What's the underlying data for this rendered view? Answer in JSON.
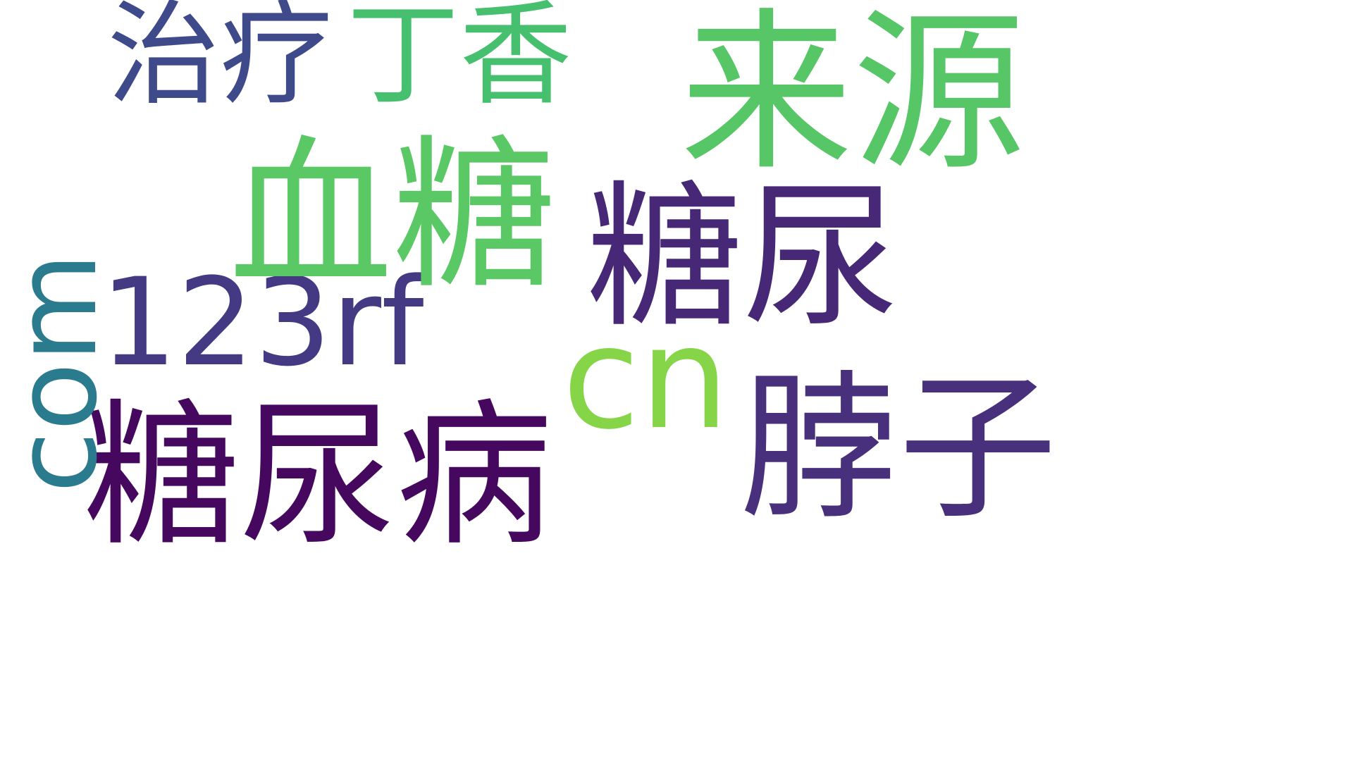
{
  "word_cloud": {
    "words": [
      {
        "text": "糖尿病",
        "color": "#46085f"
      },
      {
        "text": "糖尿",
        "color": "#472876"
      },
      {
        "text": "脖子",
        "color": "#48307c"
      },
      {
        "text": "123rf",
        "color": "#443a83"
      },
      {
        "text": "治疗",
        "color": "#3e4a89"
      },
      {
        "text": "com",
        "color": "#2b7b8e"
      },
      {
        "text": "丁香",
        "color": "#46c06f"
      },
      {
        "text": "血糖",
        "color": "#5ac864"
      },
      {
        "text": "来源",
        "color": "#56c666"
      },
      {
        "text": "cn",
        "color": "#86d549"
      }
    ]
  }
}
